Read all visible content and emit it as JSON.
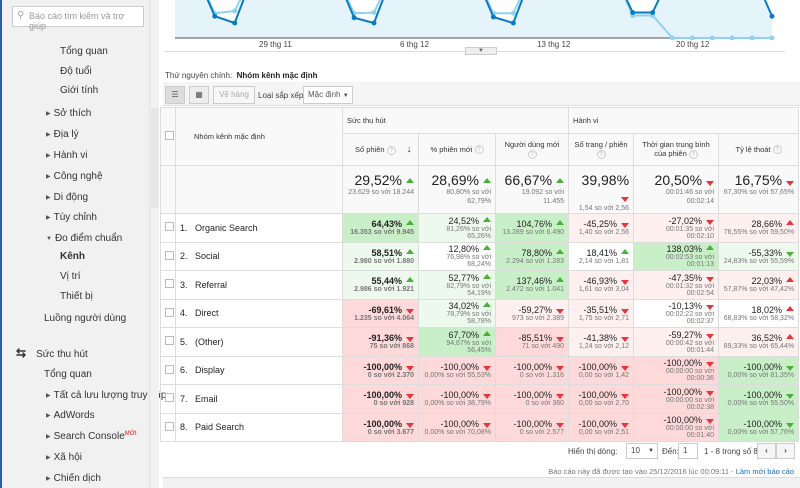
{
  "sidebar": {
    "search_placeholder": "Báo cáo tìm kiếm và trợ giúp",
    "items": [
      {
        "label": "Tổng quan",
        "level": 2,
        "tri": ""
      },
      {
        "label": "Độ tuổi",
        "level": 2,
        "tri": ""
      },
      {
        "label": "Giới tính",
        "level": 2,
        "tri": ""
      },
      {
        "label": "Sở thích",
        "level": 1,
        "tri": "▶"
      },
      {
        "label": "Địa lý",
        "level": 1,
        "tri": "▶"
      },
      {
        "label": "Hành vi",
        "level": 1,
        "tri": "▶"
      },
      {
        "label": "Công nghệ",
        "level": 1,
        "tri": "▶"
      },
      {
        "label": "Di động",
        "level": 1,
        "tri": "▶"
      },
      {
        "label": "Tùy chỉnh",
        "level": 1,
        "tri": "▶"
      },
      {
        "label": "Đo điểm chuẩn",
        "level": 1,
        "tri": "▼"
      },
      {
        "label": "Kênh",
        "level": 2,
        "tri": "",
        "active": true
      },
      {
        "label": "Vị trí",
        "level": 2,
        "tri": ""
      },
      {
        "label": "Thiết bị",
        "level": 2,
        "tri": ""
      },
      {
        "label": "Luồng người dùng",
        "level": 0,
        "tri": ""
      }
    ],
    "section": "Sức thu hút",
    "section_items": [
      {
        "label": "Tổng quan",
        "tri": ""
      },
      {
        "label": "Tất cả lưu lượng truy cập",
        "tri": "▶"
      },
      {
        "label": "AdWords",
        "tri": "▶"
      },
      {
        "label": "Search Console",
        "tri": "▶",
        "badge": "MỚI"
      },
      {
        "label": "Xã hội",
        "tri": "▶"
      },
      {
        "label": "Chiến dịch",
        "tri": "▶"
      }
    ]
  },
  "chart": {
    "x_labels": [
      "29 thg 11",
      "6 thg 12",
      "13 thg 12",
      "20 thg 12"
    ],
    "series_dark": [
      90,
      90,
      29,
      20,
      90,
      90,
      90,
      90,
      90,
      27,
      20,
      90,
      90,
      90,
      90,
      90,
      28,
      20,
      90,
      90,
      90,
      90,
      90,
      34,
      34,
      90,
      90,
      90,
      90,
      90,
      29
    ],
    "series_light": [
      90,
      90,
      33,
      36,
      90,
      90,
      90,
      90,
      90,
      33,
      34,
      90,
      90,
      90,
      90,
      90,
      33,
      33,
      90,
      90,
      90,
      90,
      90,
      30,
      30,
      0,
      0,
      0,
      0,
      0,
      0
    ],
    "color_dark": "#0a7bbf",
    "color_light": "#8fd3f0",
    "fill": "#e5f3fa"
  },
  "dimension": {
    "label": "Thứ nguyên chính:",
    "value": "Nhóm kênh mặc định"
  },
  "toolbar": {
    "plot_rows": "Vẽ hàng",
    "sort_label": "Loại sắp xếp:",
    "sort_value": "Mặc định"
  },
  "table": {
    "dim_header": "Nhóm kênh mặc định",
    "group_acq": "Sức thu hút",
    "group_beh": "Hành vi",
    "columns": [
      "Số phiên",
      "% phiên mới",
      "Người dùng mới",
      "Số trang / phiên",
      "Thời gian trung bình của phiên",
      "Tỷ lệ thoát"
    ],
    "totals": [
      {
        "v": "29,52%",
        "c": "23.629 so với 18.244",
        "a": "up-green"
      },
      {
        "v": "28,69%",
        "c": "80,80% so với 62,79%",
        "a": "up-green"
      },
      {
        "v": "66,67%",
        "c": "19.092 so với 11.455",
        "a": "up-green"
      },
      {
        "v": "39,98%",
        "c": "1,54 so với 2,56",
        "a": "down-red"
      },
      {
        "v": "20,50%",
        "c": "00:01:46 so với 00:02:14",
        "a": "down-red"
      },
      {
        "v": "16,75%",
        "c": "67,30% so với 57,65%",
        "a": "down-red"
      }
    ],
    "rows": [
      {
        "i": "1.",
        "name": "Organic Search",
        "cells": [
          {
            "v": "64,43%",
            "c": "16.353 so với 9.945",
            "a": "up-green",
            "k": "sg"
          },
          {
            "v": "24,52%",
            "c": "81,26% so với 65,26%",
            "a": "up-green",
            "k": "lg"
          },
          {
            "v": "104,76%",
            "c": "13.289 so với 6.490",
            "a": "up-green",
            "k": "sg"
          },
          {
            "v": "-45,25%",
            "c": "1,40 so với 2,56",
            "a": "down-red",
            "k": "lp"
          },
          {
            "v": "-27,02%",
            "c": "00:01:35 so với 00:02:10",
            "a": "down-red",
            "k": "lp"
          },
          {
            "v": "28,66%",
            "c": "76,55% so với 59,50%",
            "a": "up-red",
            "k": "lp"
          }
        ]
      },
      {
        "i": "2.",
        "name": "Social",
        "cells": [
          {
            "v": "58,51%",
            "c": "2.980 so với 1.880",
            "a": "up-green",
            "k": "lg"
          },
          {
            "v": "12,80%",
            "c": "76,98% so với 68,24%",
            "a": "up-green",
            "k": "w"
          },
          {
            "v": "78,80%",
            "c": "2.294 so với 1.283",
            "a": "up-green",
            "k": "sg"
          },
          {
            "v": "18,41%",
            "c": "2,14 so với 1,81",
            "a": "up-green",
            "k": "w"
          },
          {
            "v": "138,03%",
            "c": "00:02:53 so với 00:01:13",
            "a": "up-green",
            "k": "sg"
          },
          {
            "v": "-55,33%",
            "c": "24,83% so với 55,59%",
            "a": "down-green",
            "k": "lg"
          }
        ]
      },
      {
        "i": "3.",
        "name": "Referral",
        "cells": [
          {
            "v": "55,44%",
            "c": "2.986 so với 1.921",
            "a": "up-green",
            "k": "lg"
          },
          {
            "v": "52,77%",
            "c": "82,79% so với 54,19%",
            "a": "up-green",
            "k": "lg"
          },
          {
            "v": "137,46%",
            "c": "2.472 so với 1.041",
            "a": "up-green",
            "k": "sg"
          },
          {
            "v": "-46,93%",
            "c": "1,61 so với 3,04",
            "a": "down-red",
            "k": "lp"
          },
          {
            "v": "-47,35%",
            "c": "00:01:32 so với 00:02:54",
            "a": "down-red",
            "k": "lp"
          },
          {
            "v": "22,03%",
            "c": "57,87% so với 47,42%",
            "a": "up-red",
            "k": "lp"
          }
        ]
      },
      {
        "i": "4.",
        "name": "Direct",
        "cells": [
          {
            "v": "-69,61%",
            "c": "1.235 so với 4.064",
            "a": "down-red",
            "k": "sp"
          },
          {
            "v": "34,02%",
            "c": "78,79% so với 58,78%",
            "a": "up-green",
            "k": "lg"
          },
          {
            "v": "-59,27%",
            "c": "973 so với 2.389",
            "a": "down-red",
            "k": "lp"
          },
          {
            "v": "-35,51%",
            "c": "1,75 so với 2,71",
            "a": "down-red",
            "k": "lp"
          },
          {
            "v": "-10,13%",
            "c": "00:02:22 so với 00:02:37",
            "a": "down-red",
            "k": "w"
          },
          {
            "v": "18,02%",
            "c": "68,83% so với 58,32%",
            "a": "up-red",
            "k": "w"
          }
        ]
      },
      {
        "i": "5.",
        "name": "(Other)",
        "cells": [
          {
            "v": "-91,36%",
            "c": "75 so với 868",
            "a": "down-red",
            "k": "sp"
          },
          {
            "v": "67,70%",
            "c": "94,67% so với 56,45%",
            "a": "up-green",
            "k": "sg"
          },
          {
            "v": "-85,51%",
            "c": "71 so với 490",
            "a": "down-red",
            "k": "sp"
          },
          {
            "v": "-41,38%",
            "c": "1,24 so với 2,12",
            "a": "down-red",
            "k": "lp"
          },
          {
            "v": "-59,27%",
            "c": "00:00:42 so với 00:01:44",
            "a": "down-red",
            "k": "lp"
          },
          {
            "v": "36,52%",
            "c": "89,33% so với 65,44%",
            "a": "up-red",
            "k": "lp"
          }
        ]
      },
      {
        "i": "6.",
        "name": "Display",
        "cells": [
          {
            "v": "-100,00%",
            "c": "0 so với 2.370",
            "a": "down-red",
            "k": "sp"
          },
          {
            "v": "-100,00%",
            "c": "0,00% so với 55,53%",
            "a": "down-red",
            "k": "sp"
          },
          {
            "v": "-100,00%",
            "c": "0 so với 1.316",
            "a": "down-red",
            "k": "sp"
          },
          {
            "v": "-100,00%",
            "c": "0,00 so với 1,42",
            "a": "down-red",
            "k": "sp"
          },
          {
            "v": "-100,00%",
            "c": "00:00:00 so với 00:00:36",
            "a": "down-red",
            "k": "sp"
          },
          {
            "v": "-100,00%",
            "c": "0,00% so với 81,35%",
            "a": "down-green",
            "k": "sg"
          }
        ]
      },
      {
        "i": "7.",
        "name": "Email",
        "cells": [
          {
            "v": "-100,00%",
            "c": "0 so với 928",
            "a": "down-red",
            "k": "sp"
          },
          {
            "v": "-100,00%",
            "c": "0,00% so với 38,79%",
            "a": "down-red",
            "k": "sp"
          },
          {
            "v": "-100,00%",
            "c": "0 so với 360",
            "a": "down-red",
            "k": "sp"
          },
          {
            "v": "-100,00%",
            "c": "0,00 so với 2,70",
            "a": "down-red",
            "k": "sp"
          },
          {
            "v": "-100,00%",
            "c": "00:00:00 so với 00:02:38",
            "a": "down-red",
            "k": "sp"
          },
          {
            "v": "-100,00%",
            "c": "0,00% so với 55,50%",
            "a": "down-green",
            "k": "sg"
          }
        ]
      },
      {
        "i": "8.",
        "name": "Paid Search",
        "cells": [
          {
            "v": "-100,00%",
            "c": "0 so với 3.677",
            "a": "down-red",
            "k": "sp"
          },
          {
            "v": "-100,00%",
            "c": "0,00% so với 70,08%",
            "a": "down-red",
            "k": "sp"
          },
          {
            "v": "-100,00%",
            "c": "0 so với 2.577",
            "a": "down-red",
            "k": "sp"
          },
          {
            "v": "-100,00%",
            "c": "0,00 so với 2,51",
            "a": "down-red",
            "k": "sp"
          },
          {
            "v": "-100,00%",
            "c": "00:00:00 so với 00:01:40",
            "a": "down-red",
            "k": "sp"
          },
          {
            "v": "-100,00%",
            "c": "0,00% so với 57,76%",
            "a": "down-green",
            "k": "sg"
          }
        ]
      }
    ]
  },
  "footer": {
    "show_rows": "Hiển thị dòng:",
    "rows_value": "10",
    "goto": "Đến:",
    "goto_value": "1",
    "range": "1 - 8 trong số 8",
    "prev": "‹",
    "next": "›",
    "generated": "Báo cáo này đã được tạo vào 25/12/2016 lúc 00:09:11 - ",
    "refresh": "Làm mới báo cáo"
  }
}
